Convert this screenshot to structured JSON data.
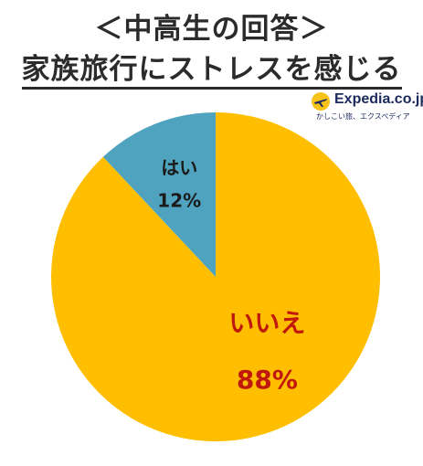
{
  "title": {
    "line1": "＜中高生の回答＞",
    "line2": "家族旅行にストレスを感じる"
  },
  "brand": {
    "name": "Expedia.co.jp",
    "tagline": "かしこい旅、エクスペディア",
    "logo_icon": "airplane-globe-icon"
  },
  "chart_data": {
    "type": "pie",
    "title": "家族旅行にストレスを感じる",
    "slices": [
      {
        "label": "はい",
        "value": 12,
        "value_label": "12%",
        "color": "#4fa3bf",
        "label_color": "#1a1a1a"
      },
      {
        "label": "いいえ",
        "value": 88,
        "value_label": "88%",
        "color": "#ffbf00",
        "label_color": "#c0180c"
      }
    ]
  }
}
